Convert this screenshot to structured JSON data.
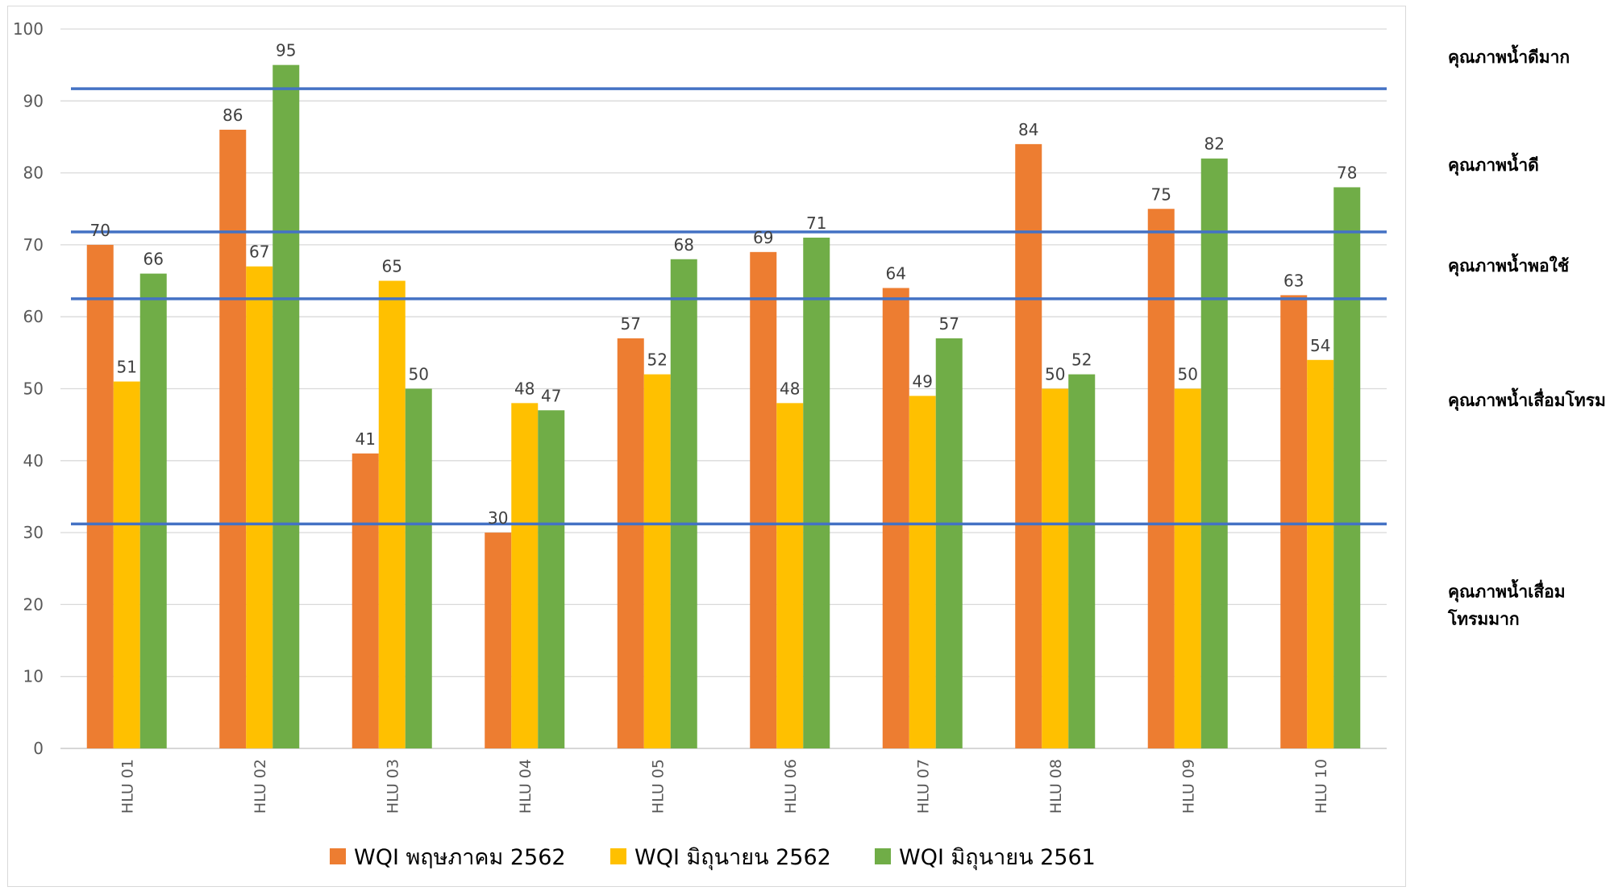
{
  "chart_data": {
    "type": "bar",
    "categories": [
      "HLU 01",
      "HLU 02",
      "HLU 03",
      "HLU 04",
      "HLU 05",
      "HLU 06",
      "HLU 07",
      "HLU 08",
      "HLU 09",
      "HLU 10"
    ],
    "series": [
      {
        "name": "WQI พฤษภาคม 2562",
        "color": "#ED7D31",
        "values": [
          70,
          86,
          41,
          30,
          57,
          69,
          64,
          84,
          75,
          63
        ]
      },
      {
        "name": "WQI มิถุนายน 2562",
        "color": "#FFC000",
        "values": [
          51,
          67,
          65,
          48,
          52,
          48,
          49,
          50,
          50,
          54
        ]
      },
      {
        "name": "WQI มิถุนายน 2561",
        "color": "#70AD47",
        "values": [
          66,
          95,
          50,
          47,
          68,
          71,
          57,
          52,
          82,
          78
        ]
      }
    ],
    "title": "",
    "xlabel": "",
    "ylabel": "",
    "ylim": [
      0,
      100
    ],
    "yticks": [
      0,
      10,
      20,
      30,
      40,
      50,
      60,
      70,
      80,
      90,
      100
    ],
    "grid": true,
    "legend_position": "bottom",
    "threshold_lines": {
      "color": "#4472C4",
      "values": [
        91.7,
        71.8,
        62.5,
        31.2
      ]
    },
    "zone_labels": [
      {
        "lines": [
          "คุณภาพน้ำดีมาก"
        ],
        "value": 96.2
      },
      {
        "lines": [
          "คุณภาพน้ำดี"
        ],
        "value": 81.2
      },
      {
        "lines": [
          "คุณภาพน้ำพอใช้"
        ],
        "value": 67.2
      },
      {
        "lines": [
          "คุณภาพน้ำเสื่อมโทรม"
        ],
        "value": 48.5
      },
      {
        "lines": [
          "คุณภาพน้ำเสื่อม",
          "โทรมมาก"
        ],
        "value": 20.0
      }
    ]
  }
}
